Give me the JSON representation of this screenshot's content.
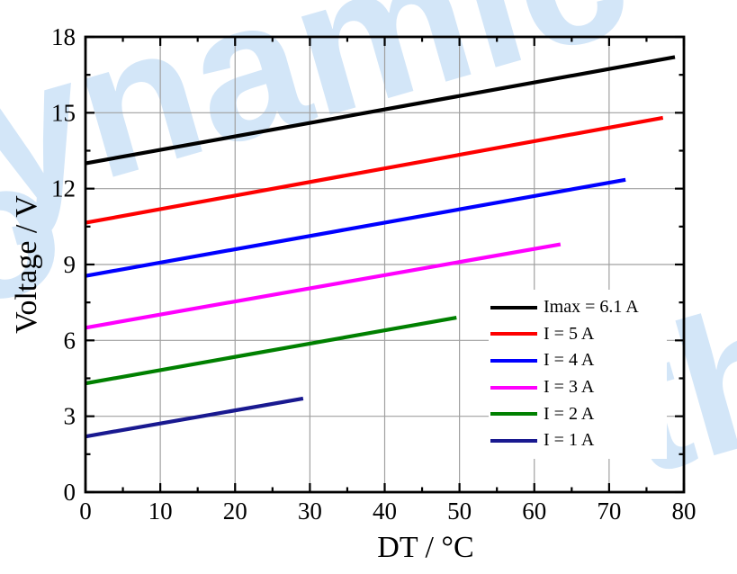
{
  "watermark": {
    "color": "#d3e6f8",
    "fragments": [
      "dynamic",
      "o",
      "th"
    ]
  },
  "chart_data": {
    "type": "line",
    "title": "",
    "xlabel": "DT / °C",
    "ylabel": "Voltage / V",
    "xlim": [
      0,
      80
    ],
    "ylim": [
      0,
      18
    ],
    "x_major_ticks": [
      0,
      10,
      20,
      30,
      40,
      50,
      60,
      70,
      80
    ],
    "x_minor_ticks": [
      5,
      15,
      25,
      35,
      45,
      55,
      65,
      75
    ],
    "y_major_ticks": [
      0,
      3,
      6,
      9,
      12,
      15,
      18
    ],
    "y_minor_ticks": [
      1.5,
      4.5,
      7.5,
      10.5,
      13.5,
      16.5
    ],
    "grid": true,
    "grid_color": "#a0a0a0",
    "frame_color": "#000000",
    "legend_position": "inside-right-lower",
    "series": [
      {
        "name": "Imax = 6.1 A",
        "color": "#000000",
        "points": [
          [
            0,
            13.0
          ],
          [
            78.8,
            17.2
          ]
        ]
      },
      {
        "name": "I = 5 A",
        "color": "#fe0000",
        "points": [
          [
            0,
            10.65
          ],
          [
            77.2,
            14.8
          ]
        ]
      },
      {
        "name": "I = 4 A",
        "color": "#0000ff",
        "points": [
          [
            0,
            8.55
          ],
          [
            72.2,
            12.35
          ]
        ]
      },
      {
        "name": "I = 3 A",
        "color": "#ff00fe",
        "points": [
          [
            0,
            6.5
          ],
          [
            63.5,
            9.8
          ]
        ]
      },
      {
        "name": "I = 2 A",
        "color": "#008000",
        "points": [
          [
            0,
            4.3
          ],
          [
            49.6,
            6.9
          ]
        ]
      },
      {
        "name": "I = 1 A",
        "color": "#191990",
        "points": [
          [
            0,
            2.2
          ],
          [
            29.1,
            3.7
          ]
        ]
      }
    ]
  }
}
